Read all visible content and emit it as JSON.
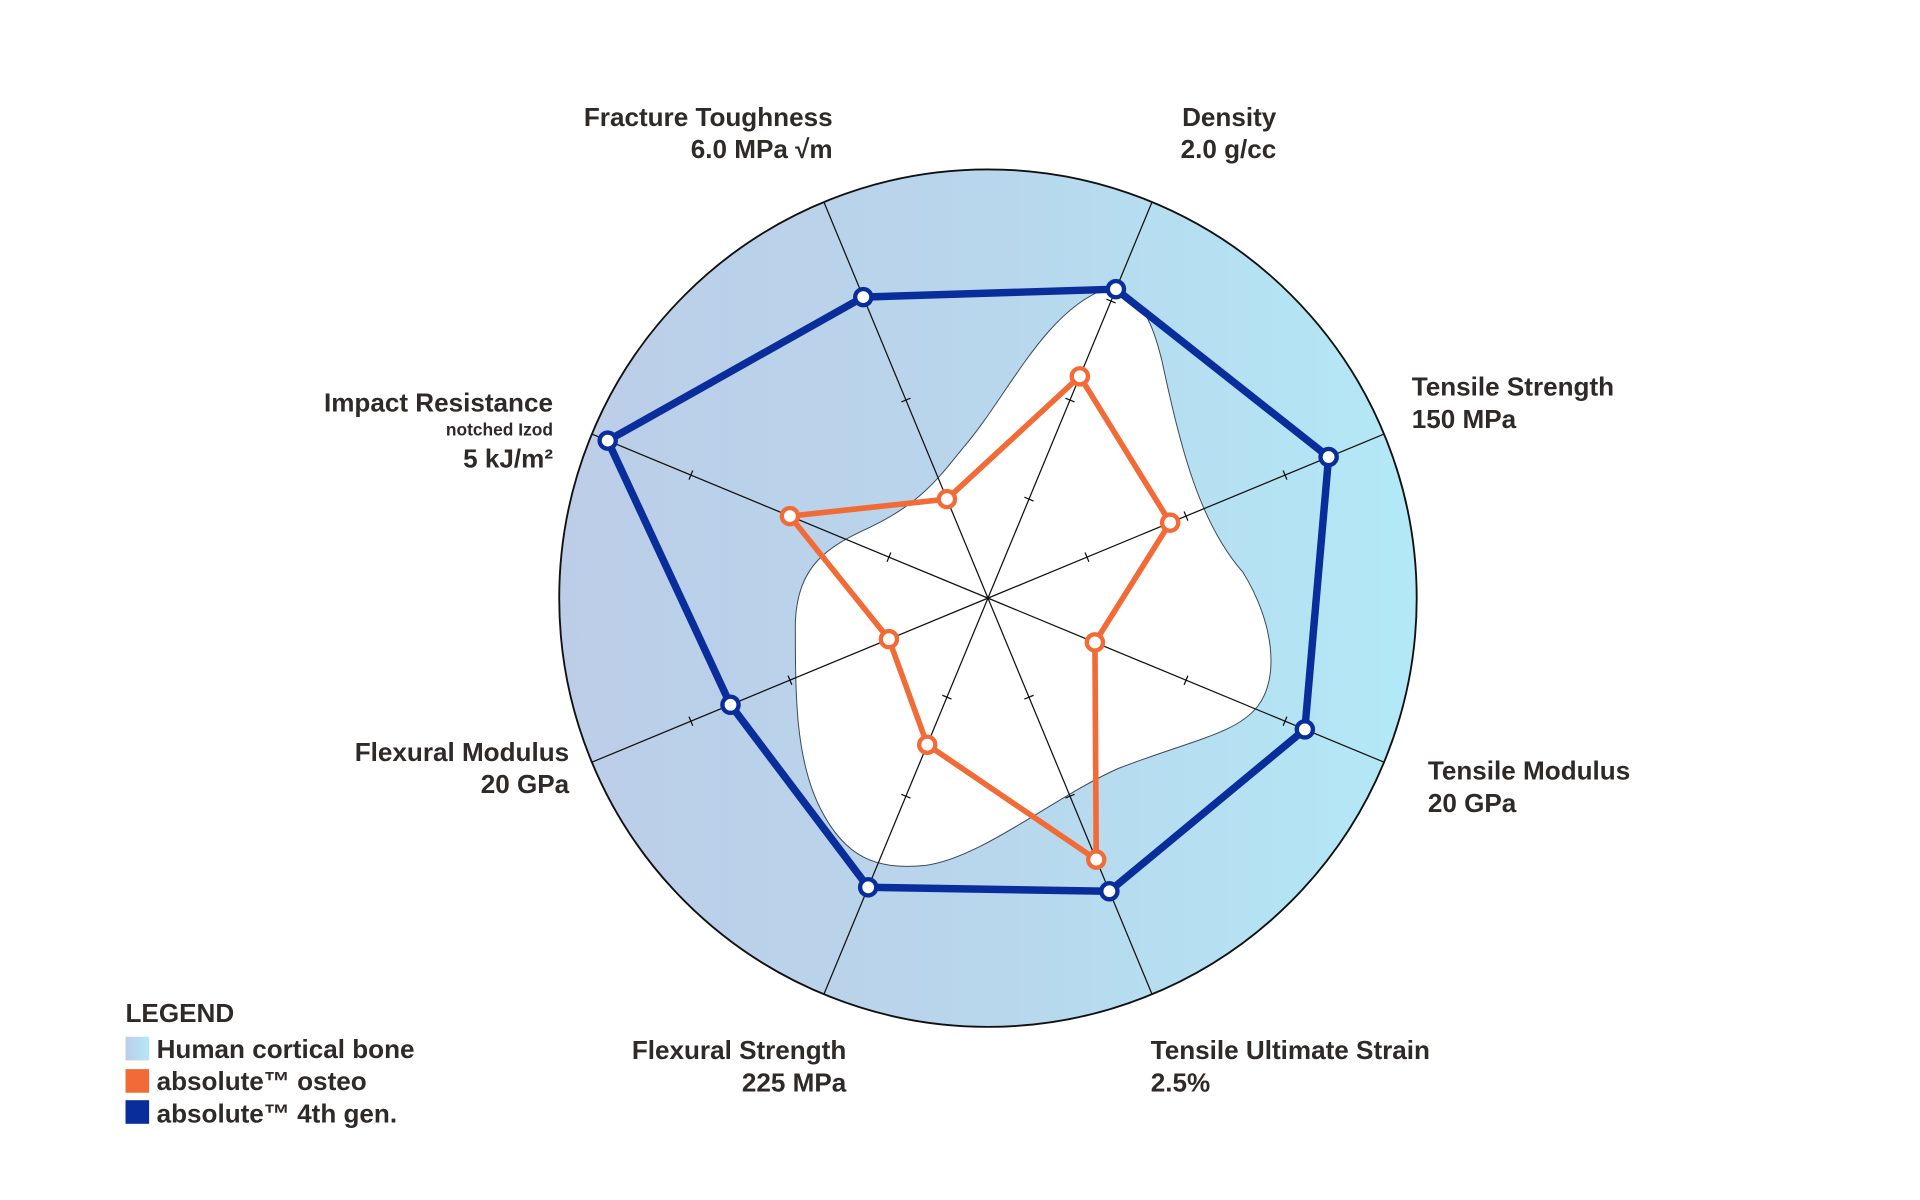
{
  "chart_data": {
    "type": "radar",
    "title": "",
    "value_scale": "fraction of axis maximum (0-1)",
    "rlim": [
      0,
      1
    ],
    "ticks": [
      0.25,
      0.5,
      0.75
    ],
    "axes": [
      {
        "name": "Density",
        "max_label": "2.0 g/cc"
      },
      {
        "name": "Tensile Strength",
        "max_label": "150 MPa"
      },
      {
        "name": "Tensile Modulus",
        "max_label": "20 GPa"
      },
      {
        "name": "Tensile Ultimate Strain",
        "max_label": "2.5%"
      },
      {
        "name": "Flexural Strength",
        "max_label": "225 MPa"
      },
      {
        "name": "Flexural Modulus",
        "max_label": "20 GPa"
      },
      {
        "name": "Impact Resistance",
        "sub_label": "notched Izod",
        "max_label": "5 kJ/m²"
      },
      {
        "name": "Fracture Toughness",
        "max_label": "6.0 MPa √m"
      }
    ],
    "series": [
      {
        "name": "absolute™ 4th gen.",
        "color": "#0a2d9c",
        "values": [
          0.78,
          0.86,
          0.8,
          0.74,
          0.73,
          0.65,
          0.96,
          0.76
        ]
      },
      {
        "name": "absolute™ osteo",
        "color": "#f26a35",
        "values": [
          0.56,
          0.46,
          0.27,
          0.66,
          0.37,
          0.25,
          0.5,
          0.25
        ]
      }
    ],
    "band": {
      "name": "Human cortical bone",
      "color_left": "#bccde8",
      "color_right": "#b3e9f7"
    },
    "legend": {
      "title": "LEGEND",
      "position": "bottom-left"
    }
  }
}
